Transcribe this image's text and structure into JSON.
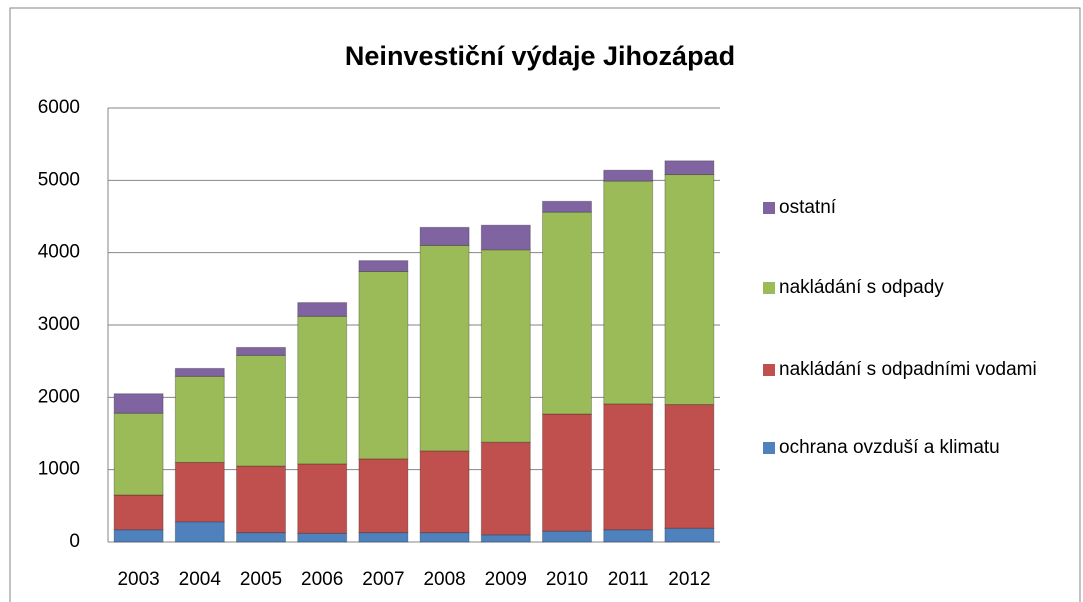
{
  "chart_data": {
    "type": "stacked_bar",
    "title": "Neinvestiční výdaje Jihozápad",
    "categories": [
      "2003",
      "2004",
      "2005",
      "2006",
      "2007",
      "2008",
      "2009",
      "2010",
      "2011",
      "2012"
    ],
    "series": [
      {
        "name": "ochrana ovzduší a klimatu",
        "color": "#4f81bd",
        "values": [
          170,
          280,
          130,
          120,
          130,
          130,
          100,
          150,
          170,
          190
        ]
      },
      {
        "name": "nakládání s odpadními vodami",
        "color": "#c0504d",
        "values": [
          480,
          820,
          920,
          960,
          1020,
          1130,
          1280,
          1620,
          1740,
          1710
        ]
      },
      {
        "name": "nakládání s odpady",
        "color": "#9bbb59",
        "values": [
          1130,
          1190,
          1530,
          2040,
          2590,
          2840,
          2660,
          2790,
          3080,
          3180
        ]
      },
      {
        "name": "ostatní",
        "color": "#8064a2",
        "values": [
          270,
          110,
          110,
          190,
          150,
          250,
          340,
          150,
          150,
          190
        ]
      }
    ],
    "ylim": [
      0,
      6000
    ],
    "yticks": [
      0,
      1000,
      2000,
      3000,
      4000,
      5000,
      6000
    ],
    "grid": true,
    "legend": "right"
  }
}
